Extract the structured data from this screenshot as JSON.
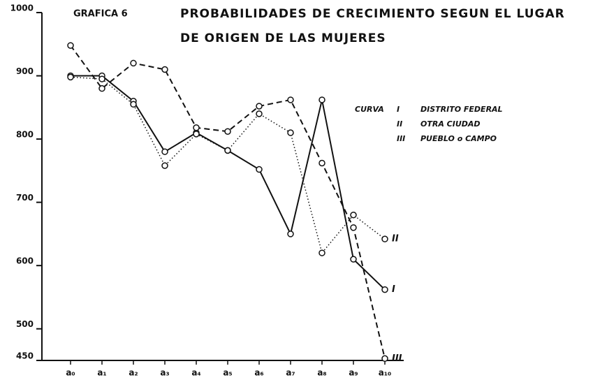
{
  "chart_data": {
    "type": "line",
    "label": "GRAFICA 6",
    "title": [
      "PROBABILIDADES DE CRECIMIENTO SEGUN EL LUGAR",
      "DE ORIGEN DE LAS MUJERES"
    ],
    "legend_prefix": "CURVA",
    "categories": [
      "a₀",
      "a₁",
      "a₂",
      "a₃",
      "a₄",
      "a₅",
      "a₆",
      "a₇",
      "a₈",
      "a₉",
      "a₁₀"
    ],
    "ylim": [
      450,
      1000
    ],
    "yticks": [
      450,
      500,
      600,
      700,
      800,
      900,
      1000
    ],
    "legend": "right",
    "series": [
      {
        "name": "DISTRITO FEDERAL",
        "numeral": "I",
        "color": "#111111",
        "dash": "solid",
        "values": [
          900,
          900,
          860,
          780,
          810,
          782,
          752,
          650,
          862,
          610,
          562
        ]
      },
      {
        "name": "OTRA CIUDAD",
        "numeral": "II",
        "color": "#111111",
        "dash": "dotted",
        "values": [
          898,
          895,
          855,
          758,
          808,
          782,
          840,
          810,
          620,
          680,
          642
        ]
      },
      {
        "name": "PUEBLO o CAMPO",
        "numeral": "III",
        "color": "#111111",
        "dash": "dashed",
        "values": [
          948,
          880,
          920,
          910,
          818,
          812,
          852,
          862,
          762,
          660,
          453
        ]
      }
    ]
  }
}
